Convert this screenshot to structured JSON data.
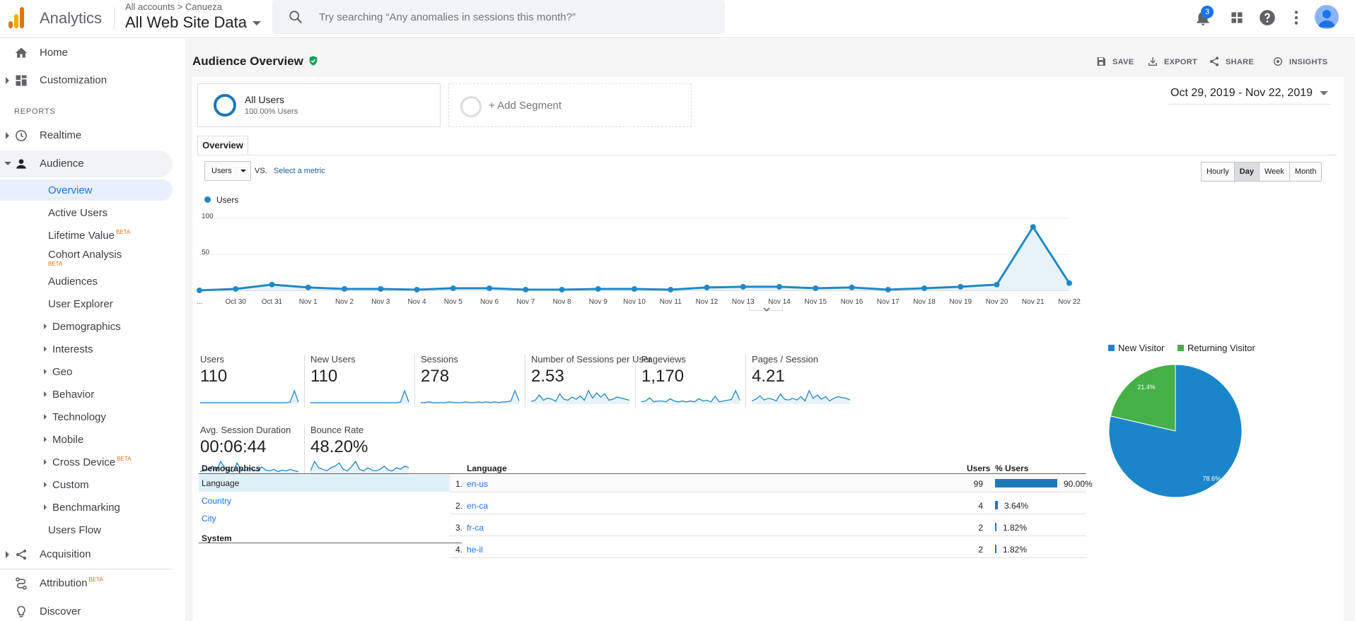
{
  "header": {
    "app_name": "Analytics",
    "account_path": "All accounts > Canueza",
    "property_view": "All Web Site Data",
    "search_placeholder": "Try searching “Any anomalies in sessions this month?”",
    "notification_count": "3",
    "icons": [
      "notifications-icon",
      "apps-icon",
      "help-icon",
      "more-vert-icon",
      "avatar"
    ]
  },
  "sidebar": {
    "home": "Home",
    "customization": "Customization",
    "reports_header": "REPORTS",
    "realtime": "Realtime",
    "audience": "Audience",
    "audience_items": [
      {
        "label": "Overview"
      },
      {
        "label": "Active Users"
      },
      {
        "label": "Lifetime Value",
        "beta": "BETA"
      },
      {
        "label": "Cohort Analysis",
        "beta": "BETA"
      },
      {
        "label": "Audiences"
      },
      {
        "label": "User Explorer"
      },
      {
        "label": "Demographics"
      },
      {
        "label": "Interests"
      },
      {
        "label": "Geo"
      },
      {
        "label": "Behavior"
      },
      {
        "label": "Technology"
      },
      {
        "label": "Mobile"
      },
      {
        "label": "Cross Device",
        "beta": "BETA"
      },
      {
        "label": "Custom"
      },
      {
        "label": "Benchmarking"
      },
      {
        "label": "Users Flow"
      }
    ],
    "acquisition": "Acquisition",
    "attribution": "Attribution",
    "attribution_beta": "BETA",
    "discover": "Discover"
  },
  "page": {
    "title": "Audience Overview",
    "actions": {
      "save": "SAVE",
      "export": "EXPORT",
      "share": "SHARE",
      "insights": "INSIGHTS"
    },
    "segment": {
      "name": "All Users",
      "pct": "100.00% Users"
    },
    "add_segment": "+ Add Segment",
    "date_range": "Oct 29, 2019 - Nov 22, 2019",
    "tab": "Overview",
    "metric_select": "Users",
    "vs_label": "VS.",
    "select_metric": "Select a metric",
    "granularity": [
      "Hourly",
      "Day",
      "Week",
      "Month"
    ],
    "granularity_selected": "Day"
  },
  "chart_data": {
    "type": "line",
    "legend": "Users",
    "series_color": "#1e88c7",
    "y_ticks": [
      "100",
      "50"
    ],
    "ylim": [
      0,
      100
    ],
    "x": [
      "...",
      "Oct 30",
      "Oct 31",
      "Nov 1",
      "Nov 2",
      "Nov 3",
      "Nov 4",
      "Nov 5",
      "Nov 6",
      "Nov 7",
      "Nov 8",
      "Nov 9",
      "Nov 10",
      "Nov 11",
      "Nov 12",
      "Nov 13",
      "Nov 14",
      "Nov 15",
      "Nov 16",
      "Nov 17",
      "Nov 18",
      "Nov 19",
      "Nov 20",
      "Nov 21",
      "Nov 22"
    ],
    "values": [
      0,
      2,
      8,
      4,
      2,
      2,
      1,
      3,
      3,
      1,
      1,
      2,
      2,
      1,
      4,
      5,
      5,
      3,
      4,
      1,
      3,
      5,
      8,
      88,
      10
    ]
  },
  "scorecards": [
    {
      "name": "Users",
      "value": "110",
      "spark": [
        1,
        1,
        1,
        1,
        1,
        1,
        1,
        1,
        1,
        1,
        1,
        1,
        1,
        1,
        1,
        1,
        1,
        1,
        1,
        1,
        1,
        1,
        2,
        18,
        2
      ]
    },
    {
      "name": "New Users",
      "value": "110",
      "spark": [
        1,
        1,
        1,
        1,
        1,
        1,
        1,
        1,
        1,
        1,
        1,
        1,
        1,
        1,
        1,
        1,
        1,
        1,
        1,
        1,
        1,
        1,
        2,
        18,
        2
      ]
    },
    {
      "name": "Sessions",
      "value": "278",
      "spark": [
        1,
        1,
        2,
        1,
        1,
        1,
        1,
        2,
        1,
        1,
        1,
        2,
        1,
        1,
        2,
        1,
        2,
        1,
        2,
        1,
        2,
        2,
        3,
        16,
        3
      ]
    },
    {
      "name": "Number of Sessions per User",
      "value": "2.53",
      "spark": [
        2,
        3,
        8,
        3,
        5,
        4,
        2,
        9,
        4,
        3,
        6,
        4,
        7,
        3,
        12,
        5,
        10,
        6,
        9,
        3,
        4,
        6,
        5,
        4,
        3
      ]
    },
    {
      "name": "Pageviews",
      "value": "1,170",
      "spark": [
        2,
        3,
        7,
        2,
        3,
        3,
        2,
        6,
        3,
        2,
        3,
        2,
        3,
        2,
        6,
        3,
        4,
        2,
        9,
        2,
        3,
        4,
        5,
        16,
        4
      ]
    },
    {
      "name": "Pages / Session",
      "value": "4.21",
      "spark": [
        3,
        5,
        9,
        4,
        6,
        5,
        3,
        11,
        5,
        4,
        6,
        4,
        8,
        3,
        15,
        6,
        10,
        5,
        8,
        3,
        6,
        8,
        7,
        6,
        4
      ]
    },
    {
      "name": "Avg. Session Duration",
      "value": "00:06:44",
      "spark": [
        3,
        6,
        5,
        10,
        4,
        16,
        8,
        5,
        3,
        14,
        6,
        4,
        8,
        5,
        4,
        9,
        5,
        4,
        6,
        3,
        5,
        4,
        6,
        4,
        3
      ]
    },
    {
      "name": "Bounce Rate",
      "value": "48.20%",
      "spark": [
        4,
        16,
        8,
        6,
        4,
        8,
        10,
        14,
        6,
        4,
        9,
        16,
        6,
        4,
        8,
        5,
        4,
        6,
        10,
        5,
        4,
        8,
        6,
        10,
        8
      ]
    }
  ],
  "pie": {
    "legend": [
      {
        "label": "New Visitor",
        "color": "#1a86c9"
      },
      {
        "label": "Returning Visitor",
        "color": "#45b048"
      }
    ],
    "slices": [
      {
        "label": "78.6%",
        "value": 78.6,
        "color": "#1a86c9"
      },
      {
        "label": "21.4%",
        "value": 21.4,
        "color": "#45b048"
      }
    ]
  },
  "demographics": {
    "header": "Demographics",
    "items": [
      "Language",
      "Country",
      "City"
    ],
    "system_header": "System"
  },
  "language_table": {
    "header": "Language",
    "users_header": "Users",
    "pct_header": "% Users",
    "rows": [
      {
        "idx": "1.",
        "name": "en-us",
        "users": "99",
        "pct": "90.00%",
        "fraction": 0.9
      },
      {
        "idx": "2.",
        "name": "en-ca",
        "users": "4",
        "pct": "3.64%",
        "fraction": 0.0364
      },
      {
        "idx": "3.",
        "name": "fr-ca",
        "users": "2",
        "pct": "1.82%",
        "fraction": 0.0182
      },
      {
        "idx": "4.",
        "name": "he-il",
        "users": "2",
        "pct": "1.82%",
        "fraction": 0.0182
      }
    ]
  }
}
